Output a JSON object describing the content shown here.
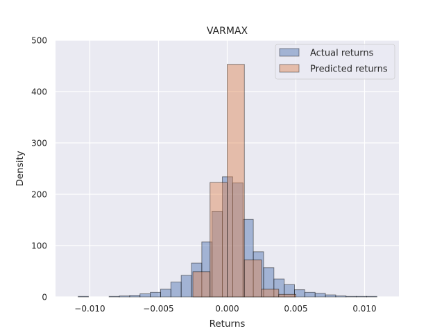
{
  "chart_data": {
    "type": "histogram",
    "title": "VARMAX",
    "xlabel": "Returns",
    "ylabel": "Density",
    "xlim": [
      -0.0125,
      0.0125
    ],
    "ylim": [
      0,
      500
    ],
    "x_ticks": [
      -0.01,
      -0.005,
      0.0,
      0.005,
      0.01
    ],
    "x_tick_labels": [
      "−0.010",
      "−0.005",
      "0.000",
      "0.005",
      "0.010"
    ],
    "y_ticks": [
      0,
      100,
      200,
      300,
      400,
      500
    ],
    "y_tick_labels": [
      "0",
      "100",
      "200",
      "300",
      "400",
      "500"
    ],
    "grid": true,
    "legend_position": "top-right",
    "series": [
      {
        "name": "Actual returns",
        "color": "#4c72b0",
        "bin_start": -0.01085,
        "bin_width": 0.00075,
        "values": [
          1,
          0,
          0,
          1,
          2,
          3,
          6,
          9,
          15,
          29,
          42,
          66,
          107,
          167,
          234,
          222,
          151,
          88,
          57,
          35,
          24,
          14,
          9,
          7,
          4,
          2,
          1,
          1,
          1
        ]
      },
      {
        "name": "Predicted returns",
        "color": "#dd8452",
        "bin_start": -0.0025,
        "bin_width": 0.00125,
        "values": [
          49,
          223,
          453,
          72,
          15,
          5
        ]
      }
    ]
  }
}
